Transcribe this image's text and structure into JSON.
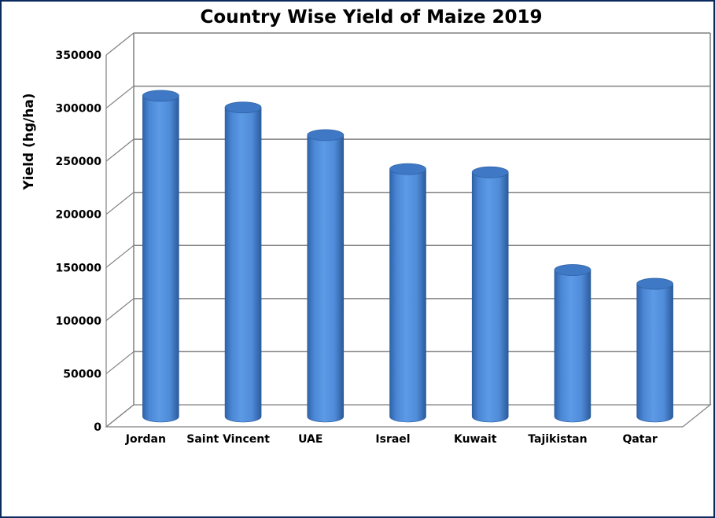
{
  "chart_data": {
    "type": "bar",
    "style": "3d-cylinder",
    "title": "Country Wise Yield of Maize 2019",
    "xlabel": "",
    "ylabel": "Yield (hg/ha)",
    "ylim": [
      0,
      350000
    ],
    "yticks": [
      0,
      50000,
      100000,
      150000,
      200000,
      250000,
      300000,
      350000
    ],
    "grid": true,
    "legend": "none",
    "categories": [
      "Jordan",
      "Saint Vincent",
      "UAE",
      "Israel",
      "Kuwait",
      "Tajikistan",
      "Qatar"
    ],
    "values": [
      302000,
      291000,
      265000,
      233000,
      230000,
      138000,
      125000
    ],
    "colors": {
      "bar": "#4f8fdc",
      "bar_dark": "#2f63a8",
      "bar_top": "#3f78c4",
      "gridline": "#808080",
      "frame_border": "#0b2a5e"
    }
  }
}
